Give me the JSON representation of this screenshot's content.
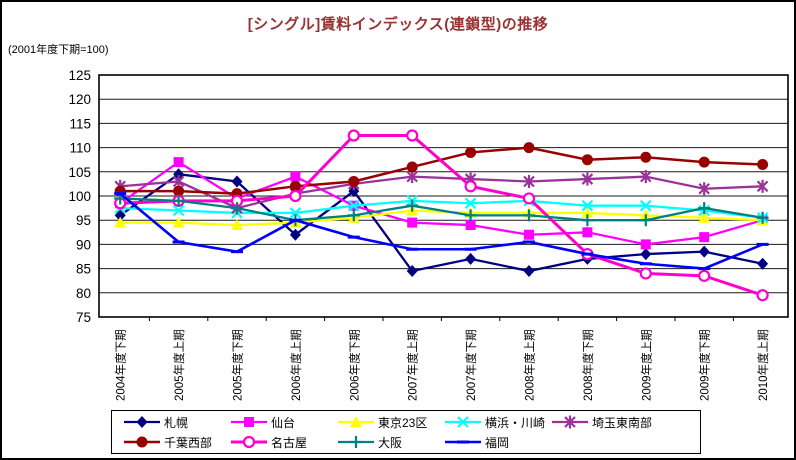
{
  "window": {
    "background": "#FFFFFF",
    "border_color": "#000000"
  },
  "chart_data": {
    "type": "line",
    "title": "[シングル]賃料インデックス(連鎖型)の推移",
    "subtitle_note": "(2001年度下期=100)",
    "title_color": "#993333",
    "xlabel": "",
    "ylabel": "",
    "ylim": [
      75,
      125
    ],
    "ytick_step": 5,
    "yticks": [
      75,
      80,
      85,
      90,
      95,
      100,
      105,
      110,
      115,
      120,
      125
    ],
    "grid": "horizontal-only",
    "legend_position": "bottom-boxed",
    "categories": [
      "2004年度下期",
      "2005年度上期",
      "2005年度下期",
      "2006年度上期",
      "2006年度下期",
      "2007年度上期",
      "2007年度下期",
      "2008年度上期",
      "2008年度下期",
      "2009年度上期",
      "2009年度下期",
      "2010年度上期"
    ],
    "series": [
      {
        "name": "札幌",
        "color": "#000080",
        "marker": "diamond",
        "width": 2.3,
        "values": [
          96,
          104.5,
          103,
          92,
          101,
          84.5,
          87,
          84.5,
          87,
          88,
          88.5,
          86
        ]
      },
      {
        "name": "仙台",
        "color": "#FF00FF",
        "marker": "square",
        "width": 2.3,
        "values": [
          98.5,
          107,
          99.5,
          104,
          98,
          94.5,
          94,
          92,
          92.5,
          90,
          91.5,
          95
        ]
      },
      {
        "name": "東京23区",
        "color": "#FFFF00",
        "marker": "triangle",
        "width": 2.3,
        "values": [
          94.5,
          94.5,
          94,
          94.5,
          95.5,
          97,
          96.5,
          96.5,
          96.5,
          96,
          95.5,
          95
        ]
      },
      {
        "name": "横浜・川崎",
        "color": "#00FFFF",
        "marker": "x",
        "width": 2.3,
        "values": [
          97.5,
          97,
          96.5,
          96.5,
          98,
          99,
          98.5,
          99,
          98,
          98,
          97,
          95.5
        ]
      },
      {
        "name": "埼玉東南部",
        "color": "#993399",
        "marker": "star",
        "width": 2.3,
        "values": [
          102,
          103,
          97.5,
          100.5,
          102.5,
          104,
          103.5,
          103,
          103.5,
          104,
          101.5,
          102
        ]
      },
      {
        "name": "千葉西部",
        "color": "#990000",
        "marker": "circle",
        "width": 2.5,
        "values": [
          101,
          101,
          100.5,
          102,
          103,
          106,
          109,
          110,
          107.5,
          108,
          107,
          106.5
        ]
      },
      {
        "name": "名古屋",
        "color": "#FF00CC",
        "marker": "circle-open",
        "width": 3,
        "values": [
          98.5,
          99,
          99,
          100,
          112.5,
          112.5,
          102,
          99.5,
          88,
          84,
          83.5,
          79.5
        ]
      },
      {
        "name": "大阪",
        "color": "#008080",
        "marker": "plus",
        "width": 2.3,
        "values": [
          99.5,
          99,
          97.5,
          95,
          96,
          98,
          96,
          96,
          95,
          95,
          97.5,
          95.5
        ]
      },
      {
        "name": "福岡",
        "color": "#0000FF",
        "marker": "dash",
        "width": 2.6,
        "values": [
          100.5,
          90.5,
          88.5,
          95,
          91.5,
          89,
          89,
          90.5,
          88,
          86,
          85,
          90
        ]
      }
    ]
  }
}
